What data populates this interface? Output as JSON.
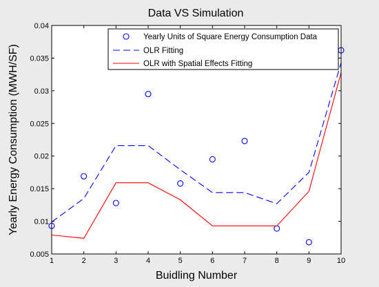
{
  "chart_data": {
    "type": "line",
    "title": "Data VS Simulation",
    "xlabel": "Buidling Number",
    "ylabel": "Yearly Energy Consumption (MWH/SF)",
    "xlim": [
      1,
      10
    ],
    "ylim": [
      0.005,
      0.04
    ],
    "x_ticks": [
      "1",
      "2",
      "3",
      "4",
      "5",
      "6",
      "7",
      "8",
      "9",
      "10"
    ],
    "y_ticks": [
      "0.005",
      "0.01",
      "0.015",
      "0.02",
      "0.025",
      "0.03",
      "0.035",
      "0.04"
    ],
    "grid": false,
    "legend_position": "top-right",
    "x": [
      1,
      2,
      3,
      4,
      5,
      6,
      7,
      8,
      9,
      10
    ],
    "series": [
      {
        "name": "Yearly Units of Square Energy Consumption Data",
        "style": "markers",
        "color": "#0000ff",
        "values": [
          0.0093,
          0.0169,
          0.0128,
          0.0295,
          0.0158,
          0.0195,
          0.0223,
          0.0089,
          0.0068,
          0.0362
        ]
      },
      {
        "name": "OLR Fitting",
        "style": "dashed",
        "color": "#0000ff",
        "values": [
          0.0099,
          0.0135,
          0.0216,
          0.0216,
          0.0179,
          0.0144,
          0.0144,
          0.0127,
          0.0175,
          0.0343
        ]
      },
      {
        "name": "OLR with Spatial Effects Fitting",
        "style": "solid",
        "color": "#ff0000",
        "values": [
          0.0079,
          0.0074,
          0.0159,
          0.0159,
          0.0133,
          0.0093,
          0.0093,
          0.0093,
          0.0146,
          0.0328
        ]
      }
    ]
  }
}
